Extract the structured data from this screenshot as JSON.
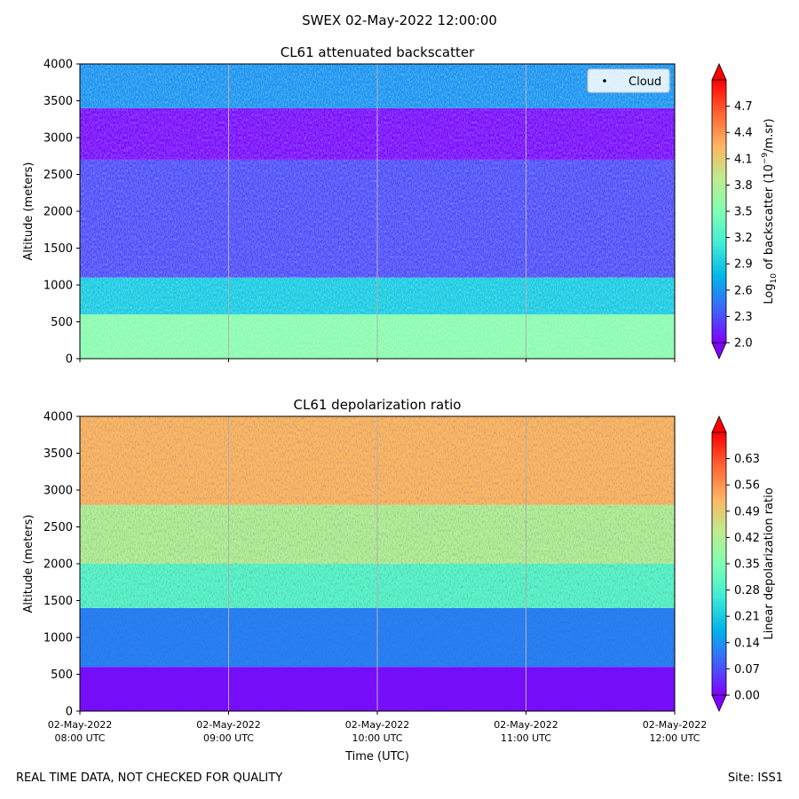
{
  "suptitle": "SWEX 02-May-2022 12:00:00",
  "footer": {
    "left": "REAL TIME DATA, NOT CHECKED FOR QUALITY",
    "right": "Site: ISS1"
  },
  "chart_data": [
    {
      "type": "heatmap",
      "title": "CL61 attenuated backscatter",
      "ylabel": "Altitude (meters)",
      "xlabel": "",
      "ylim": [
        0,
        4000
      ],
      "yticks": [
        0,
        500,
        1000,
        1500,
        2000,
        2500,
        3000,
        3500,
        4000
      ],
      "x_hours": [
        8,
        9,
        10,
        11,
        12
      ],
      "grid": true,
      "legend": {
        "position": "top-right",
        "entries": [
          "Cloud"
        ]
      },
      "colorbar": {
        "label_base": "Log",
        "label_sub": "10",
        "label_mid": " of backscatter (10",
        "label_sup": "−9",
        "label_end": "/m.sr)",
        "min": 2.0,
        "max": 5.0,
        "ticks": [
          "2.0",
          "2.3",
          "2.6",
          "2.9",
          "3.2",
          "3.5",
          "3.8",
          "4.1",
          "4.4",
          "4.7"
        ],
        "cmap": "rainbow"
      },
      "layers": [
        {
          "alt": [
            0,
            600
          ],
          "value": 3.55
        },
        {
          "alt": [
            600,
            1100
          ],
          "value": 2.9
        },
        {
          "alt": [
            1100,
            2700
          ],
          "value": 2.3
        },
        {
          "alt": [
            2700,
            3400
          ],
          "value": 2.05
        },
        {
          "alt": [
            3400,
            4000
          ],
          "value": 2.6
        }
      ]
    },
    {
      "type": "heatmap",
      "title": "CL61 depolarization ratio",
      "ylabel": "Altitude (meters)",
      "xlabel": "Time (UTC)",
      "ylim": [
        0,
        4000
      ],
      "yticks": [
        0,
        500,
        1000,
        1500,
        2000,
        2500,
        3000,
        3500,
        4000
      ],
      "x_hours": [
        8,
        9,
        10,
        11,
        12
      ],
      "xticklabels": [
        [
          "02-May-2022",
          "08:00 UTC"
        ],
        [
          "02-May-2022",
          "09:00 UTC"
        ],
        [
          "02-May-2022",
          "10:00 UTC"
        ],
        [
          "02-May-2022",
          "11:00 UTC"
        ],
        [
          "02-May-2022",
          "12:00 UTC"
        ]
      ],
      "grid": true,
      "colorbar": {
        "label": "Linear depolarization ratio",
        "min": 0.0,
        "max": 0.7,
        "ticks": [
          "0.00",
          "0.07",
          "0.14",
          "0.21",
          "0.28",
          "0.35",
          "0.42",
          "0.49",
          "0.56",
          "0.63"
        ],
        "cmap": "rainbow"
      },
      "layers": [
        {
          "alt": [
            0,
            600
          ],
          "value": 0.01
        },
        {
          "alt": [
            600,
            1400
          ],
          "value": 0.12
        },
        {
          "alt": [
            1400,
            2000
          ],
          "value": 0.3
        },
        {
          "alt": [
            2000,
            2800
          ],
          "value": 0.42
        },
        {
          "alt": [
            2800,
            4000
          ],
          "value": 0.52
        }
      ]
    }
  ]
}
